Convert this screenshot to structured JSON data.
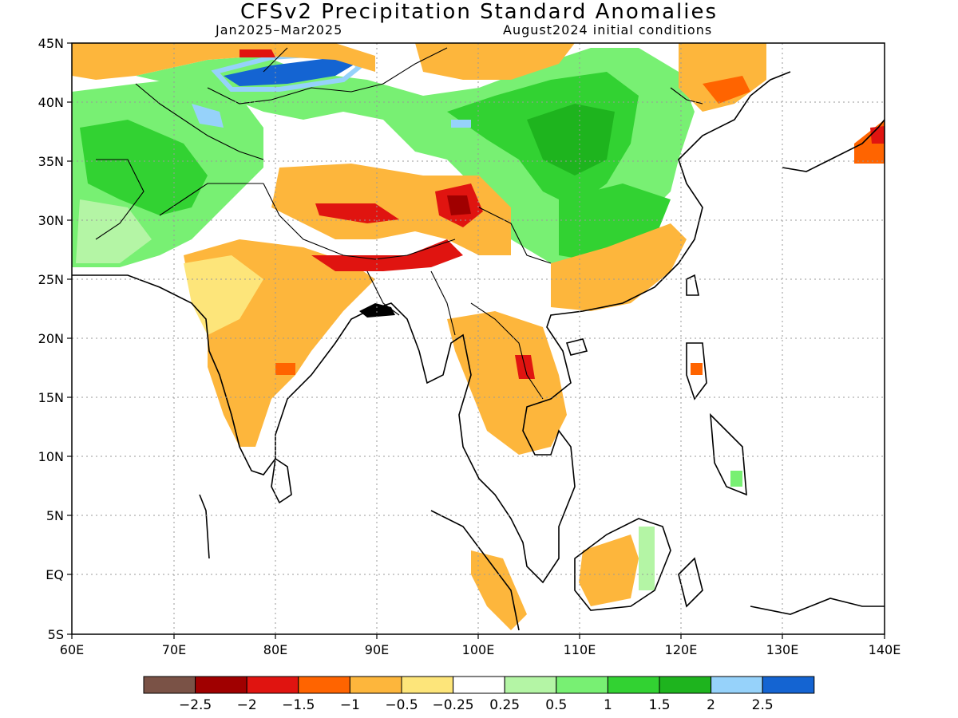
{
  "title": "CFSv2 Precipitation Standard Anomalies",
  "period": "Jan2025–Mar2025",
  "init": "August2024 initial conditions",
  "map": {
    "lon_range": [
      60,
      140
    ],
    "lat_range": [
      -5,
      45
    ],
    "lat_labels": [
      "45N",
      "40N",
      "35N",
      "30N",
      "25N",
      "20N",
      "15N",
      "10N",
      "5N",
      "EQ",
      "5S"
    ],
    "lon_labels": [
      "60E",
      "70E",
      "80E",
      "90E",
      "100E",
      "110E",
      "120E",
      "130E",
      "140E"
    ],
    "grid": "dotted"
  },
  "colorbar": {
    "colors": [
      "#7a5246",
      "#a00000",
      "#e01410",
      "#ff6400",
      "#fdb63c",
      "#fde57a",
      "#ffffff",
      "#b4f5a5",
      "#78f073",
      "#32d232",
      "#1eb41e",
      "#96d2fa",
      "#1464d2"
    ],
    "labels": [
      "−2.5",
      "−2",
      "−1.5",
      "−1",
      "−0.5",
      "−0.25",
      "0.25",
      "0.5",
      "1",
      "1.5",
      "2",
      "2.5"
    ]
  }
}
